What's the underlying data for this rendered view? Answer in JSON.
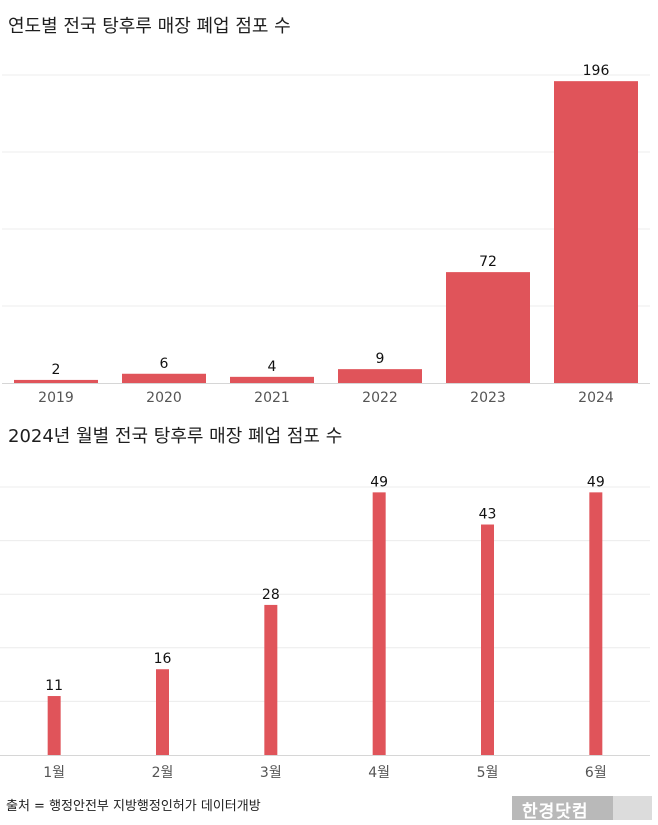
{
  "chart_data": [
    {
      "type": "bar",
      "title": "연도별 전국 탕후루 매장 폐업 점포 수",
      "categories": [
        "2019",
        "2020",
        "2021",
        "2022",
        "2023",
        "2024"
      ],
      "values": [
        2,
        6,
        4,
        9,
        72,
        196
      ],
      "ylim": [
        0,
        200
      ],
      "grid": true,
      "color": "#e0545a"
    },
    {
      "type": "bar",
      "title": "2024년 월별 전국 탕후루 매장 폐업 점포 수",
      "categories": [
        "1월",
        "2월",
        "3월",
        "4월",
        "5월",
        "6월"
      ],
      "values": [
        11,
        16,
        28,
        49,
        43,
        49
      ],
      "ylim": [
        0,
        50
      ],
      "grid": true,
      "color": "#e0545a"
    }
  ],
  "source": "출처 = 행정안전부 지방행정인허가 데이터개방",
  "logo_text": "한경닷컴"
}
